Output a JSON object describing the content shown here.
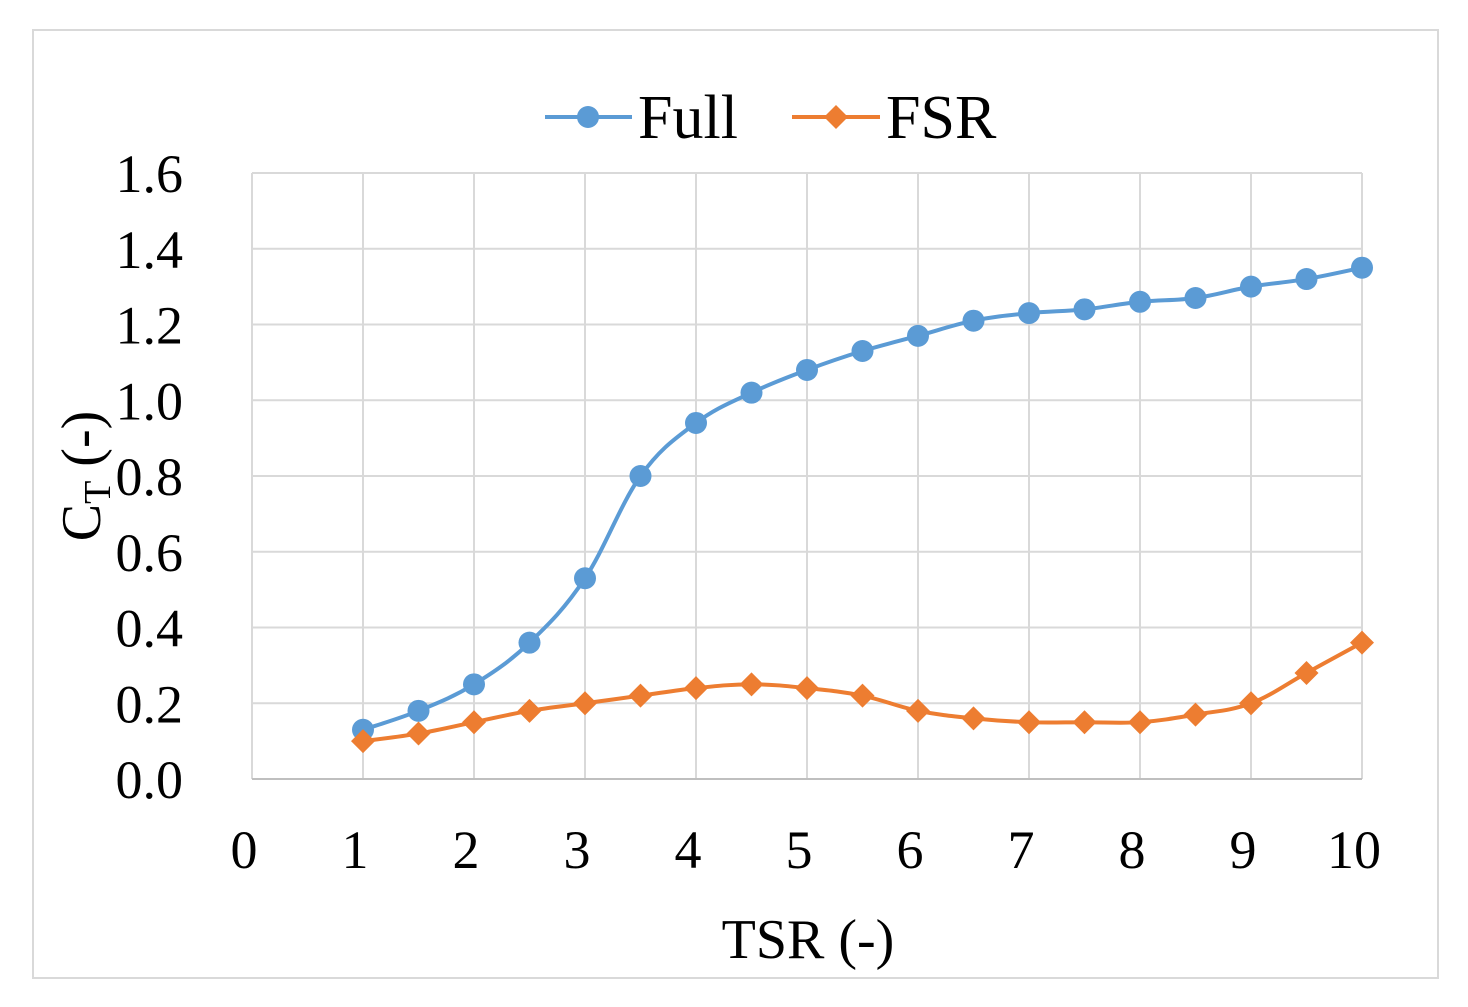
{
  "chart_data": {
    "type": "line",
    "xlabel": "TSR (-)",
    "ylabel": {
      "main": "C",
      "sub": "T",
      "suffix": " (-)"
    },
    "xlim": [
      0,
      10
    ],
    "ylim": [
      0,
      1.6
    ],
    "x_ticks": [
      "0",
      "1",
      "2",
      "3",
      "4",
      "5",
      "6",
      "7",
      "8",
      "9",
      "10"
    ],
    "y_ticks": [
      "0.0",
      "0.2",
      "0.4",
      "0.6",
      "0.8",
      "1.0",
      "1.2",
      "1.4",
      "1.6"
    ],
    "grid": true,
    "legend_position": "top",
    "series": [
      {
        "name": "Full",
        "color": "#5B9BD5",
        "marker": "circle",
        "x": [
          1,
          1.5,
          2,
          2.5,
          3,
          3.5,
          4,
          4.5,
          5,
          5.5,
          6,
          6.5,
          7,
          7.5,
          8,
          8.5,
          9,
          9.5,
          10
        ],
        "y": [
          0.13,
          0.18,
          0.25,
          0.36,
          0.53,
          0.8,
          0.94,
          1.02,
          1.08,
          1.13,
          1.17,
          1.21,
          1.23,
          1.24,
          1.26,
          1.27,
          1.3,
          1.32,
          1.35
        ]
      },
      {
        "name": "FSR",
        "color": "#ED7D31",
        "marker": "diamond",
        "x": [
          1,
          1.5,
          2,
          2.5,
          3,
          3.5,
          4,
          4.5,
          5,
          5.5,
          6,
          6.5,
          7,
          7.5,
          8,
          8.5,
          9,
          9.5,
          10
        ],
        "y": [
          0.1,
          0.12,
          0.15,
          0.18,
          0.2,
          0.22,
          0.24,
          0.25,
          0.24,
          0.22,
          0.18,
          0.16,
          0.15,
          0.15,
          0.15,
          0.17,
          0.2,
          0.28,
          0.36
        ]
      }
    ]
  }
}
